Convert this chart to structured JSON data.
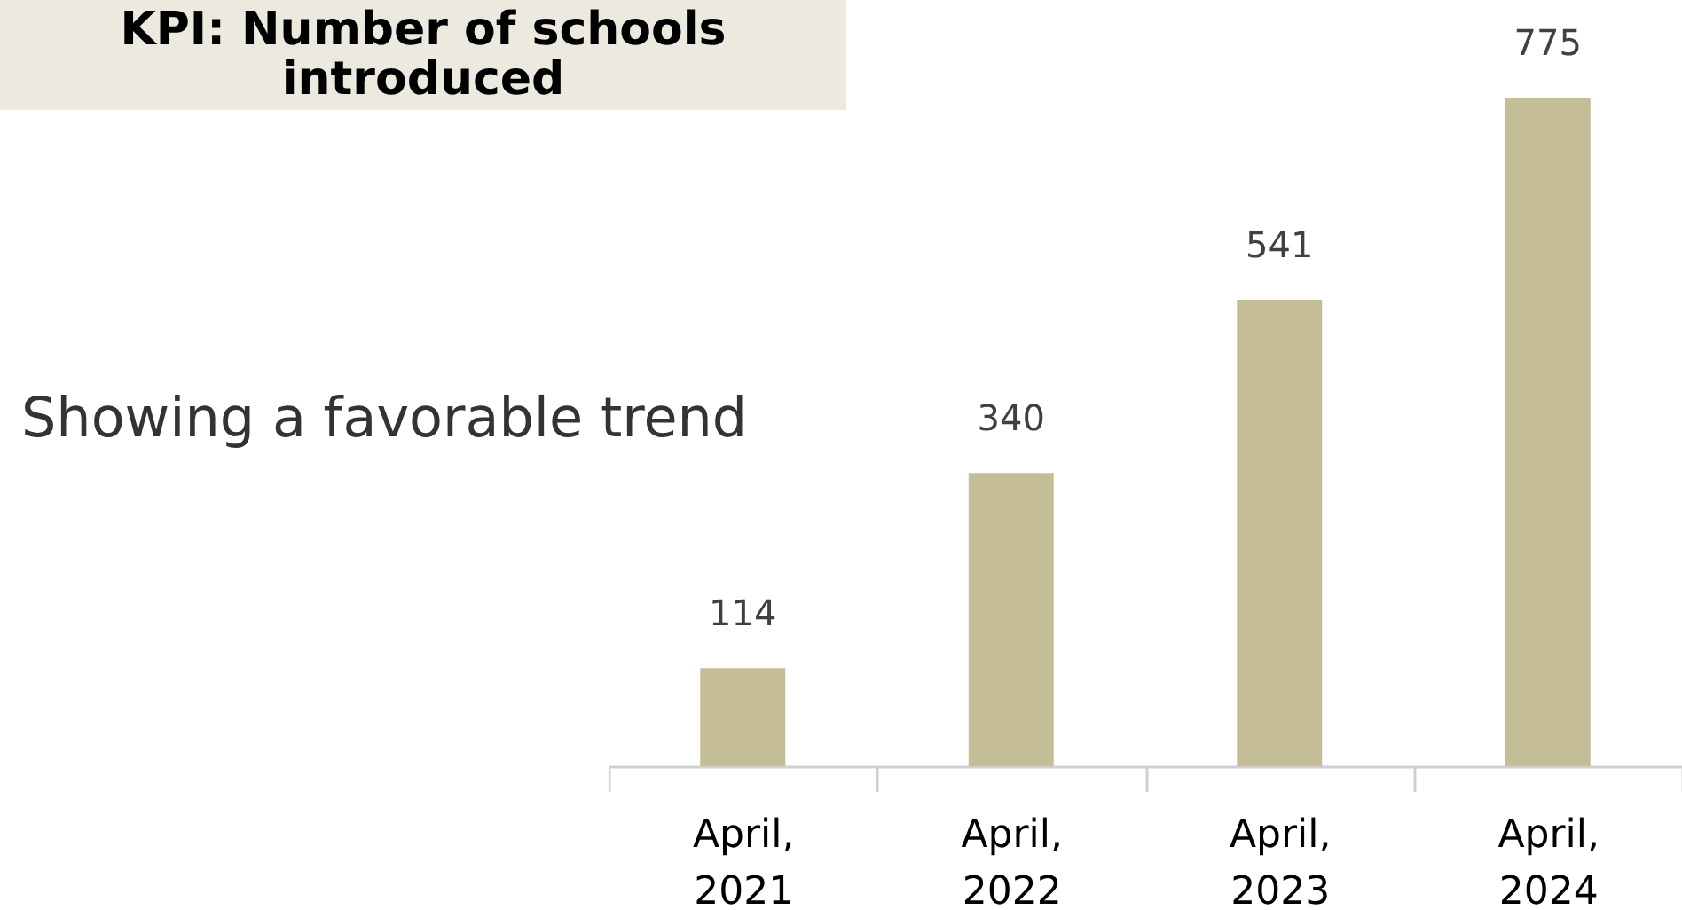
{
  "chart_data": {
    "type": "bar",
    "title": "KPI: Number of schools introduced",
    "subtitle": "Showing a favorable trend",
    "categories": [
      "April, 2021",
      "April, 2022",
      "April, 2023",
      "April, 2024"
    ],
    "values": [
      114,
      340,
      541,
      775
    ],
    "color": "#c5bd98",
    "data_labels": true
  }
}
